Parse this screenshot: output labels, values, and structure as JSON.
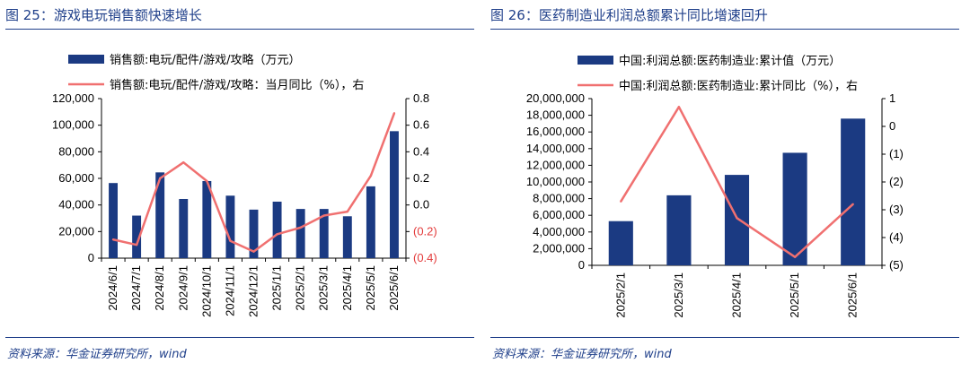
{
  "chart_data": [
    {
      "type": "bar",
      "figure_label": "图 25：游戏电玩销售额快速增长",
      "categories": [
        "2024/6/1",
        "2024/7/1",
        "2024/8/1",
        "2024/9/1",
        "2024/10/1",
        "2024/11/1",
        "2024/12/1",
        "2025/1/1",
        "2025/2/1",
        "2025/3/1",
        "2025/4/1",
        "2025/5/1",
        "2025/6/1"
      ],
      "series": [
        {
          "name": "销售额:电玩/配件/游戏/攻略（万元）",
          "kind": "bar",
          "axis": "left",
          "values": [
            56500,
            32000,
            64500,
            44500,
            58000,
            47000,
            36500,
            42500,
            37000,
            37000,
            31500,
            54000,
            95500
          ]
        },
        {
          "name": "销售额:电玩/配件/游戏/攻略：当月同比（%），右",
          "kind": "line",
          "axis": "right",
          "values": [
            -0.26,
            -0.3,
            0.2,
            0.32,
            0.18,
            -0.27,
            -0.35,
            -0.22,
            -0.17,
            -0.08,
            -0.05,
            0.22,
            0.69
          ]
        }
      ],
      "left_ticks": [
        "120,000",
        "100,000",
        "80,000",
        "60,000",
        "40,000",
        "20,000",
        "0"
      ],
      "right_ticks": [
        "0.8",
        "0.6",
        "0.4",
        "0.2",
        "0.0",
        "(0.2)",
        "(0.4)"
      ],
      "ylim_left": [
        0,
        120000
      ],
      "ylim_right": [
        -0.4,
        0.8
      ],
      "source": "资料来源：华金证券研究所，wind",
      "colors": {
        "bar": "#1b3a82",
        "line": "#f07070",
        "title": "#1f3f8a",
        "neg_tick": "#e33b3b"
      }
    },
    {
      "type": "bar",
      "figure_label": "图 26：医药制造业利润总额累计同比增速回升",
      "categories": [
        "2025/2/1",
        "2025/3/1",
        "2025/4/1",
        "2025/5/1",
        "2025/6/1"
      ],
      "series": [
        {
          "name": "中国:利润总额:医药制造业:累计值（万元）",
          "kind": "bar",
          "axis": "left",
          "values": [
            5300000,
            8400000,
            10850000,
            13500000,
            17600000
          ]
        },
        {
          "name": "中国:利润总额:医药制造业:累计同比（%），右",
          "kind": "line",
          "axis": "right",
          "values": [
            -2.7,
            0.7,
            -3.3,
            -4.7,
            -2.8
          ]
        }
      ],
      "left_ticks": [
        "20,000,000",
        "18,000,000",
        "16,000,000",
        "14,000,000",
        "12,000,000",
        "10,000,000",
        "8,000,000",
        "6,000,000",
        "4,000,000",
        "2,000,000",
        "0"
      ],
      "right_ticks": [
        "1",
        "0",
        "(1)",
        "(2)",
        "(3)",
        "(4)",
        "(5)"
      ],
      "ylim_left": [
        0,
        20000000
      ],
      "ylim_right": [
        -5,
        1
      ],
      "source": "资料来源：华金证券研究所，wind",
      "colors": {
        "bar": "#1b3a82",
        "line": "#f07070",
        "title": "#1f3f8a",
        "neg_tick": "#000000"
      }
    }
  ]
}
